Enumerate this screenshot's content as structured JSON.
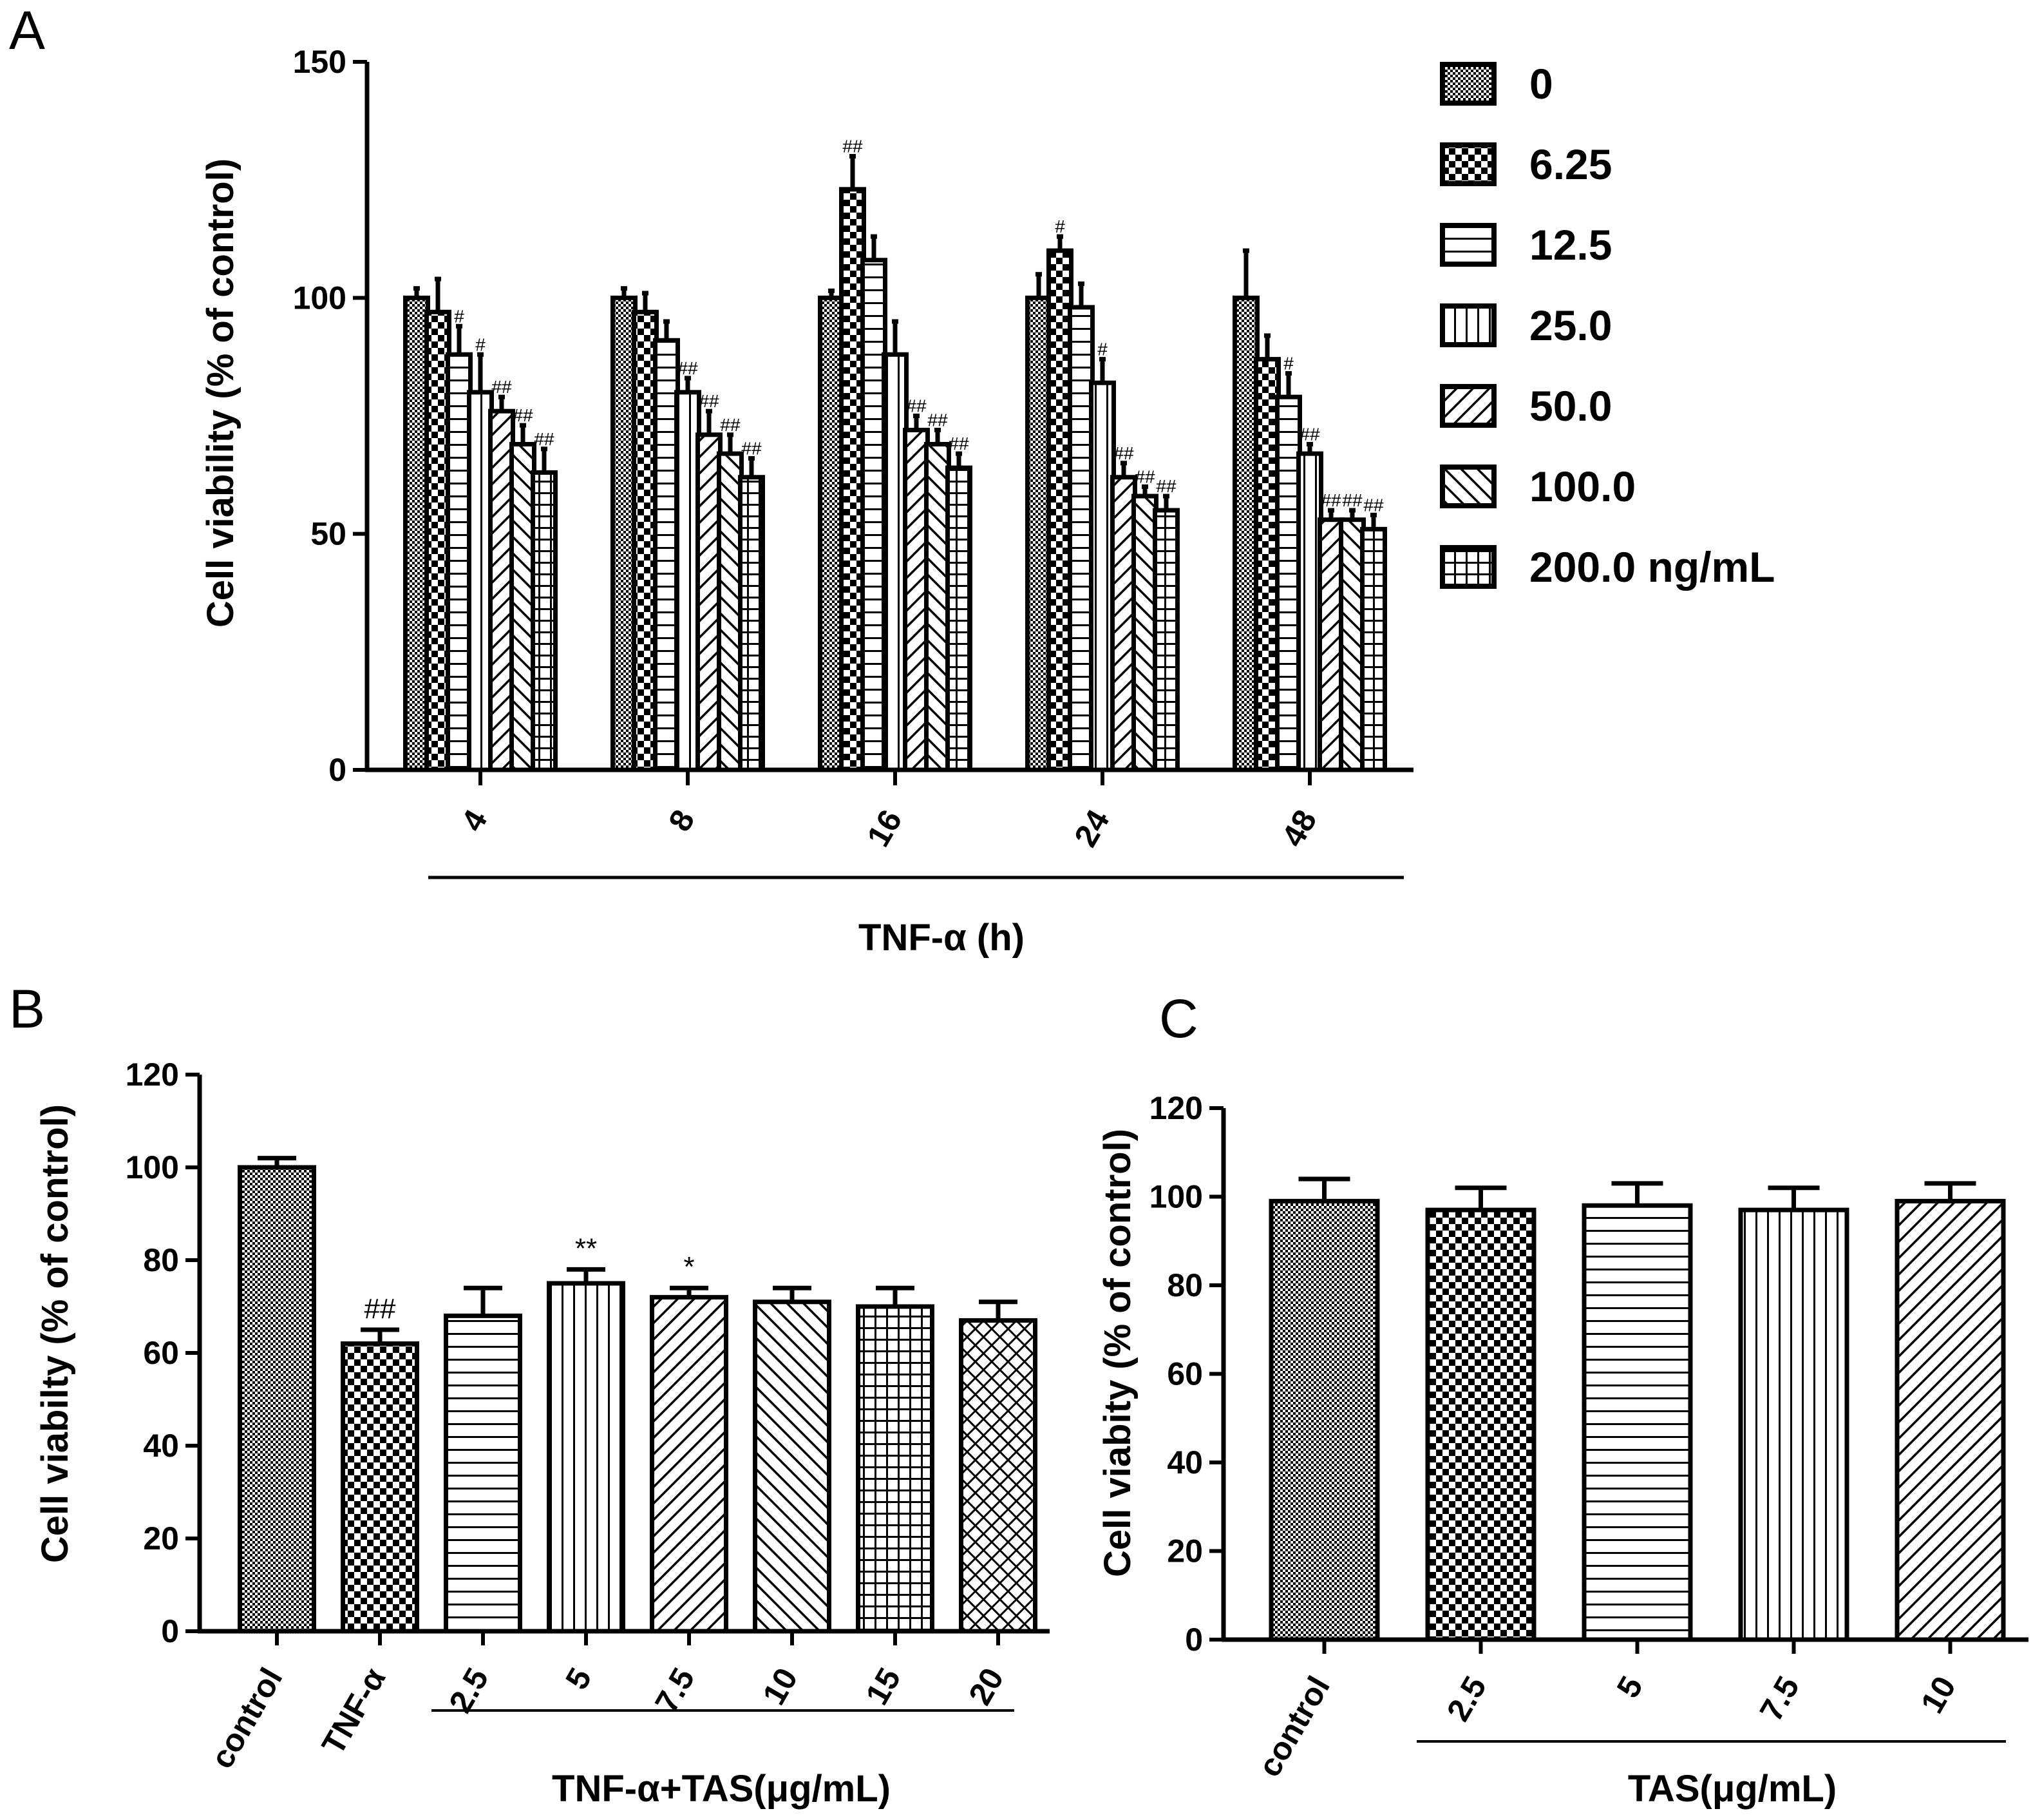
{
  "colors": {
    "ink": "#000000",
    "background": "#ffffff"
  },
  "chart_data": [
    {
      "panel": "A",
      "type": "bar",
      "ylabel": "Cell viability (% of control)",
      "xlabel": "TNF-α (h)",
      "ylim": [
        0,
        150
      ],
      "yticks": [
        "0",
        "50",
        "100",
        "150"
      ],
      "categories": [
        "4",
        "8",
        "16",
        "24",
        "48"
      ],
      "legend_position": "right",
      "series": [
        {
          "name": "0",
          "pattern": "fine-check",
          "values": [
            100,
            100,
            100,
            100,
            100
          ],
          "errors": [
            2,
            2,
            1.5,
            5,
            10
          ],
          "marks": [
            "",
            "",
            "",
            "",
            ""
          ]
        },
        {
          "name": "6.25",
          "pattern": "check",
          "values": [
            97,
            97,
            123,
            110,
            87
          ],
          "errors": [
            7,
            4,
            7,
            3,
            5
          ],
          "marks": [
            "",
            "",
            "##",
            "#",
            ""
          ]
        },
        {
          "name": "12.5",
          "pattern": "hlines",
          "values": [
            88,
            91,
            108,
            98,
            79
          ],
          "errors": [
            6,
            4,
            5,
            5,
            5
          ],
          "marks": [
            "#",
            "",
            "",
            "",
            "#"
          ]
        },
        {
          "name": "25.0",
          "pattern": "vlines",
          "values": [
            80,
            80,
            88,
            82,
            67
          ],
          "errors": [
            8,
            3,
            7,
            5,
            2
          ],
          "marks": [
            "#",
            "##",
            "",
            "#",
            "##"
          ]
        },
        {
          "name": "50.0",
          "pattern": "diag-right",
          "values": [
            76,
            71,
            72,
            62,
            53
          ],
          "errors": [
            3,
            5,
            3,
            3,
            2
          ],
          "marks": [
            "##",
            "##",
            "##",
            "##",
            "##"
          ]
        },
        {
          "name": "100.0",
          "pattern": "diag-left",
          "values": [
            69,
            67,
            69,
            58,
            53
          ],
          "errors": [
            4,
            4,
            3,
            2,
            2
          ],
          "marks": [
            "##",
            "##",
            "##",
            "##",
            "##"
          ]
        },
        {
          "name": "200.0 ng/mL",
          "pattern": "grid",
          "values": [
            63,
            62,
            64,
            55,
            51
          ],
          "errors": [
            5,
            4,
            3,
            3,
            3
          ],
          "marks": [
            "##",
            "##",
            "##",
            "##",
            "##"
          ]
        }
      ]
    },
    {
      "panel": "B",
      "type": "bar",
      "ylabel": "Cell viabilty (% of control)",
      "group_label": "TNF-α+TAS(μg/mL)",
      "ylim": [
        0,
        120
      ],
      "yticks": [
        "0",
        "20",
        "40",
        "60",
        "80",
        "100",
        "120"
      ],
      "categories": [
        "control",
        "TNF-α",
        "2.5",
        "5",
        "7.5",
        "10",
        "15",
        "20"
      ],
      "patterns": [
        "fine-check",
        "check",
        "hlines",
        "vlines",
        "diag-right",
        "diag-left",
        "grid",
        "crosshatch"
      ],
      "values": [
        100,
        62,
        68,
        75,
        72,
        71,
        70,
        67
      ],
      "errors": [
        2,
        3,
        6,
        3,
        2,
        3,
        4,
        4
      ],
      "marks": [
        "",
        "##",
        "",
        "**",
        "*",
        "",
        "",
        ""
      ]
    },
    {
      "panel": "C",
      "type": "bar",
      "ylabel": "Cell viabity (% of control)",
      "group_label": "TAS(μg/mL)",
      "ylim": [
        0,
        120
      ],
      "yticks": [
        "0",
        "20",
        "40",
        "60",
        "80",
        "100",
        "120"
      ],
      "categories": [
        "control",
        "2.5",
        "5",
        "7.5",
        "10"
      ],
      "patterns": [
        "fine-check",
        "check",
        "hlines",
        "vlines",
        "diag-right"
      ],
      "values": [
        99,
        97,
        98,
        97,
        99
      ],
      "errors": [
        5,
        5,
        5,
        5,
        4
      ],
      "marks": [
        "",
        "",
        "",
        "",
        ""
      ]
    }
  ]
}
